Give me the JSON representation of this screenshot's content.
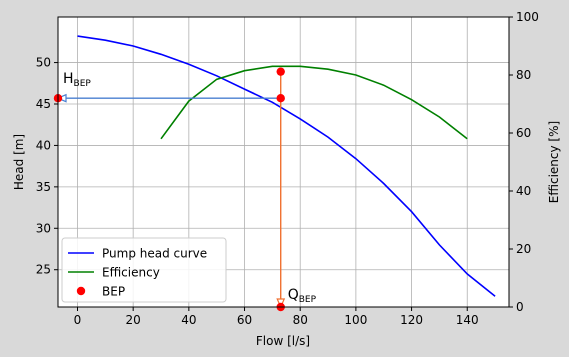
{
  "chart_data": {
    "type": "line",
    "xlabel": "Flow [l/s]",
    "ylabel": "Head [m]",
    "ylabel_right": "Efficiency [%]",
    "xlim": [
      -7,
      155
    ],
    "ylim": [
      20.5,
      55.5
    ],
    "ylim_right": [
      0,
      100
    ],
    "x_ticks": [
      0,
      20,
      40,
      60,
      80,
      100,
      120,
      140
    ],
    "y_ticks": [
      25,
      30,
      35,
      40,
      45,
      50
    ],
    "y_ticks_right": [
      0,
      20,
      40,
      60,
      80,
      100
    ],
    "grid": true,
    "legend_position": "lower-left",
    "series": [
      {
        "name": "Pump head curve",
        "axis": "left",
        "color": "#0000ff",
        "x": [
          0,
          10,
          20,
          30,
          40,
          50,
          60,
          70,
          80,
          90,
          100,
          110,
          120,
          130,
          140,
          150
        ],
        "y": [
          53.2,
          52.7,
          52.0,
          51.0,
          49.8,
          48.4,
          46.8,
          45.2,
          43.2,
          41.0,
          38.4,
          35.4,
          32.0,
          28.0,
          24.5,
          21.8
        ]
      },
      {
        "name": "Efficiency",
        "axis": "right",
        "color": "#008000",
        "x": [
          30,
          40,
          50,
          60,
          70,
          80,
          90,
          100,
          110,
          120,
          130,
          140
        ],
        "y": [
          58,
          71,
          78.5,
          81.5,
          83,
          83,
          82,
          80,
          76.5,
          71.5,
          65.5,
          58
        ]
      },
      {
        "name": "BEP",
        "axis": "left",
        "type": "scatter",
        "color": "#ff0000",
        "x": [
          73,
          73,
          73,
          -7
        ],
        "y": [
          45.7,
          48.9,
          20.5,
          45.7
        ]
      }
    ],
    "annotations": [
      {
        "base": "H",
        "sub": "BEP",
        "x": -7,
        "y": 45.7
      },
      {
        "base": "Q",
        "sub": "BEP",
        "x": 73,
        "y": 20.5
      }
    ],
    "arrows": [
      {
        "from": [
          73,
          45.7
        ],
        "to": [
          -7,
          45.7
        ],
        "color": "#4a7fd1"
      },
      {
        "from": [
          73,
          48.9
        ],
        "to": [
          73,
          20.5
        ],
        "color": "#f07030"
      }
    ]
  }
}
